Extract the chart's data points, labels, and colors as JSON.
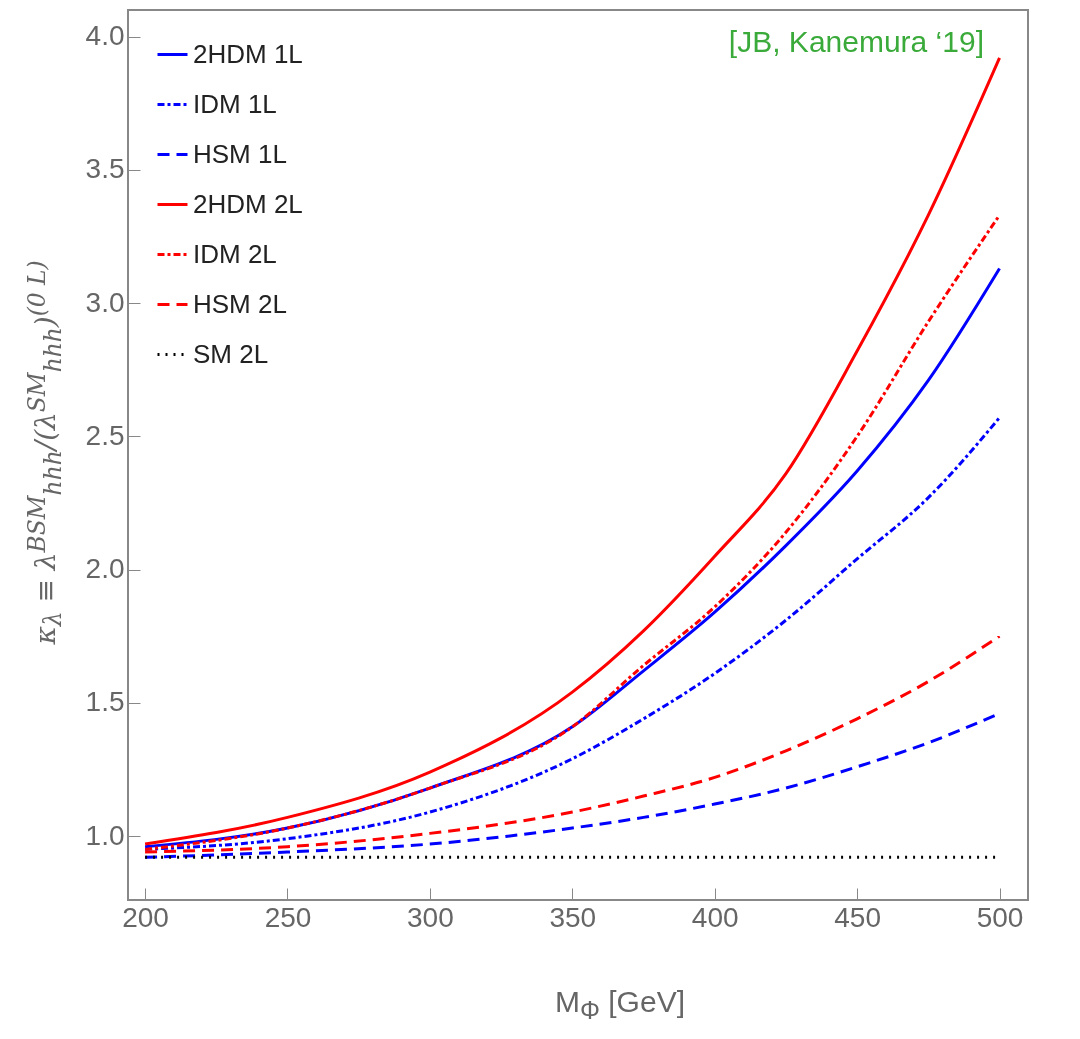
{
  "chart_data": {
    "type": "line",
    "xlabel": "M$_{Φ}$ [GeV]",
    "ylabel": "κ$_{λ}$ ≡ λ$^{BSM}$$_{hhh}$/(λ$^{SM}$$_{hhh}$)$^{(0 L)}$",
    "annotations": [
      "[JB, Kanemura ‘19]"
    ],
    "x": [
      200,
      250,
      300,
      350,
      375,
      400,
      425,
      450,
      475,
      500
    ],
    "series": [
      {
        "name": "2HDM 1L",
        "color": "#0000ff",
        "line_style": "solid",
        "values": [
          0.96,
          1.03,
          1.18,
          1.41,
          1.62,
          1.84,
          2.09,
          2.37,
          2.71,
          3.13
        ]
      },
      {
        "name": "IDM 1L",
        "color": "#0000ff",
        "line_style": "dashdot",
        "values": [
          0.95,
          0.99,
          1.09,
          1.29,
          1.44,
          1.61,
          1.81,
          2.04,
          2.27,
          2.57
        ]
      },
      {
        "name": "HSM 1L",
        "color": "#0000ff",
        "line_style": "dashed",
        "values": [
          0.92,
          0.94,
          0.97,
          1.03,
          1.07,
          1.12,
          1.18,
          1.26,
          1.35,
          1.46
        ]
      },
      {
        "name": "2HDM 2L",
        "color": "#ff0000",
        "line_style": "solid",
        "values": [
          0.97,
          1.07,
          1.24,
          1.54,
          1.77,
          2.05,
          2.36,
          2.82,
          3.33,
          3.92
        ]
      },
      {
        "name": "IDM 2L",
        "color": "#ff0000",
        "line_style": "dashdot",
        "values": [
          0.95,
          1.03,
          1.18,
          1.41,
          1.64,
          1.86,
          2.14,
          2.5,
          2.93,
          3.33
        ]
      },
      {
        "name": "HSM 2L",
        "color": "#ff0000",
        "line_style": "dashed",
        "values": [
          0.94,
          0.96,
          1.01,
          1.09,
          1.15,
          1.22,
          1.32,
          1.44,
          1.58,
          1.75
        ]
      },
      {
        "name": "SM 2L",
        "color": "#000000",
        "line_style": "dotted",
        "values": [
          0.92,
          0.92,
          0.92,
          0.92,
          0.92,
          0.92,
          0.92,
          0.92,
          0.92,
          0.92
        ]
      }
    ],
    "xlim": [
      194,
      510
    ],
    "ylim": [
      0.76,
      4.1
    ],
    "xticks": [
      200,
      250,
      300,
      350,
      400,
      450,
      500
    ],
    "yticks": [
      {
        "value": 1,
        "label": "1.0"
      },
      {
        "value": 1.5,
        "label": "1.5"
      },
      {
        "value": 2,
        "label": "2.0"
      },
      {
        "value": 2.5,
        "label": "2.5"
      },
      {
        "value": 3,
        "label": "3.0"
      },
      {
        "value": 3.5,
        "label": "3.5"
      },
      {
        "value": 4,
        "label": "4.0"
      }
    ],
    "grid": false,
    "legend": "top left"
  }
}
